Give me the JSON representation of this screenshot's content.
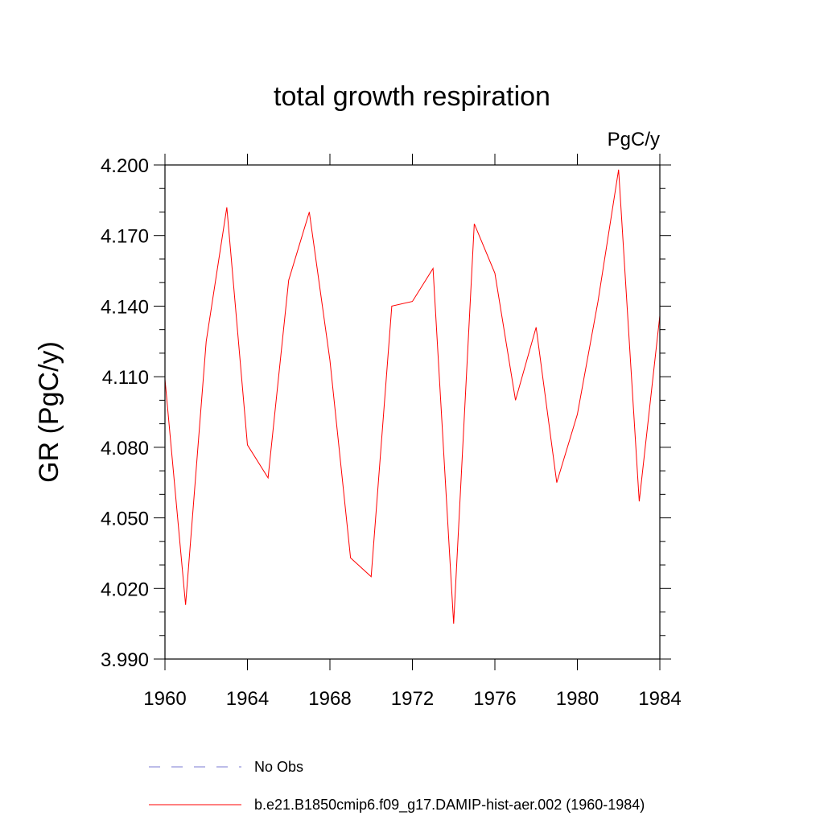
{
  "chart_data": {
    "type": "line",
    "title": "total growth respiration",
    "units_label": "PgC/y",
    "ylabel": "GR  (PgC/y)",
    "xlabel": "",
    "xlim": [
      1960,
      1984
    ],
    "ylim": [
      3.99,
      4.2
    ],
    "x_ticks": [
      1960,
      1964,
      1968,
      1972,
      1976,
      1980,
      1984
    ],
    "x_tick_labels": [
      "1960",
      "1964",
      "1968",
      "1972",
      "1976",
      "1980",
      "1984"
    ],
    "y_ticks": [
      3.99,
      4.02,
      4.05,
      4.08,
      4.11,
      4.14,
      4.17,
      4.2
    ],
    "y_tick_labels": [
      "3.990",
      "4.020",
      "4.050",
      "4.080",
      "4.110",
      "4.140",
      "4.170",
      "4.200"
    ],
    "grid": false,
    "legend_position": "bottom",
    "series": [
      {
        "name": "b.e21.B1850cmip6.f09_g17.DAMIP-hist-aer.002 (1960-1984)",
        "color": "#ff0000",
        "line_style": "solid",
        "x": [
          1960,
          1961,
          1962,
          1963,
          1964,
          1965,
          1966,
          1967,
          1968,
          1969,
          1970,
          1971,
          1972,
          1973,
          1974,
          1975,
          1976,
          1977,
          1978,
          1979,
          1980,
          1981,
          1982,
          1983,
          1984
        ],
        "y": [
          4.109,
          4.013,
          4.125,
          4.182,
          4.081,
          4.067,
          4.151,
          4.18,
          4.117,
          4.033,
          4.025,
          4.14,
          4.142,
          4.156,
          4.005,
          4.175,
          4.154,
          4.1,
          4.131,
          4.065,
          4.094,
          4.142,
          4.198,
          4.057,
          4.136
        ]
      }
    ],
    "legend": [
      {
        "label": "No Obs",
        "color": "#7a7ad0",
        "line_style": "dashed"
      },
      {
        "label": "b.e21.B1850cmip6.f09_g17.DAMIP-hist-aer.002 (1960-1984)",
        "color": "#ff0000",
        "line_style": "solid"
      }
    ]
  }
}
